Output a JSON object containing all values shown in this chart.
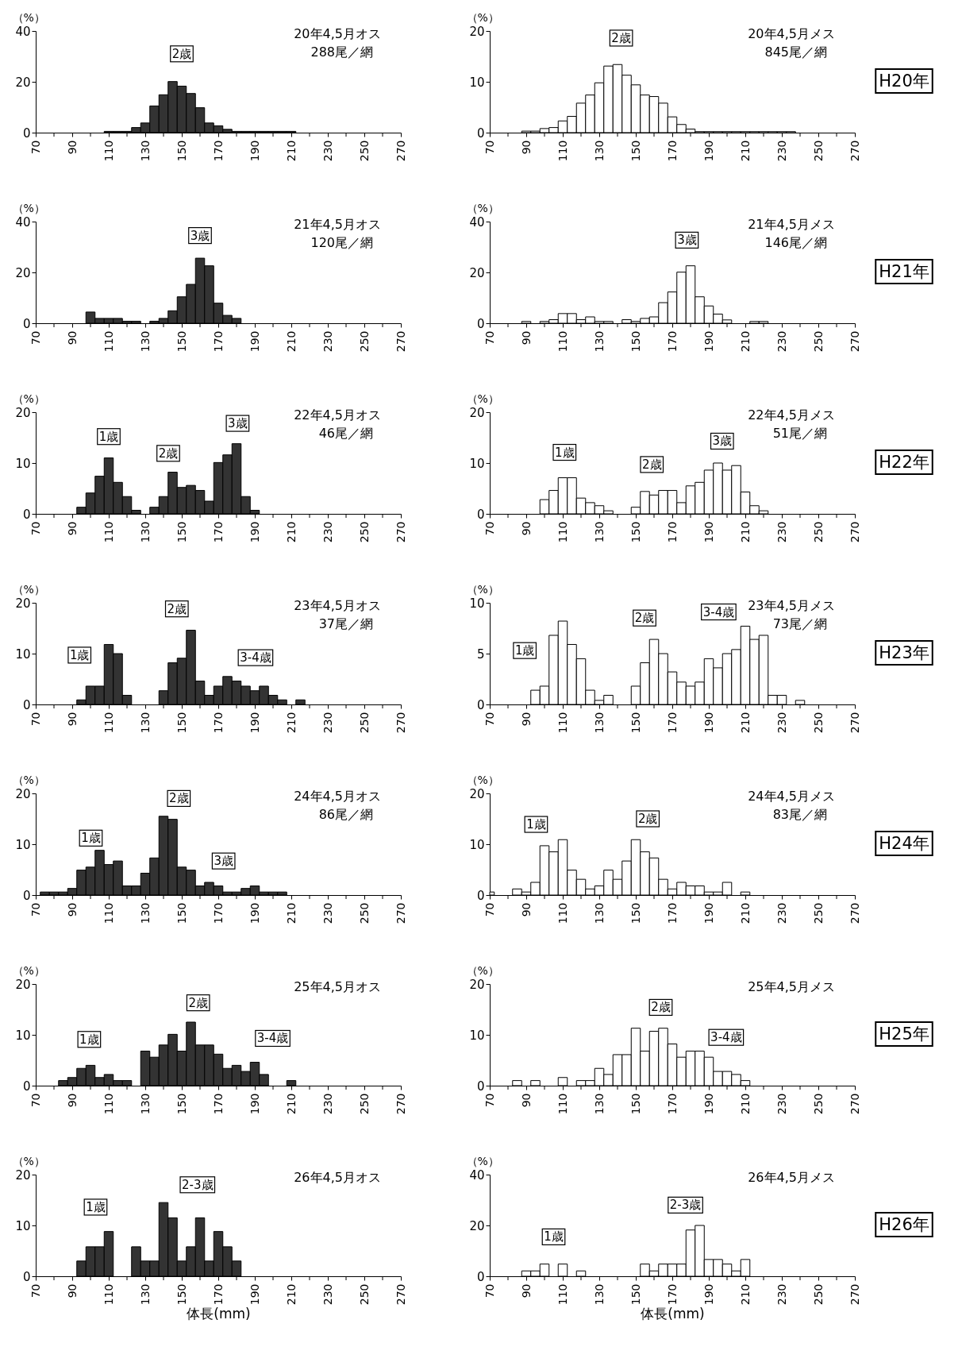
{
  "chart_data": [
    {
      "type": "histogram",
      "title": "20年4,5月オス",
      "subtitle": "288尾／網",
      "ylabel": "（%）",
      "color": "#333333",
      "xlim": [
        70,
        270
      ],
      "xticks": [
        70,
        {
          "value": 80,
          "label": null
        },
        90,
        {
          "value": 100,
          "label": null
        },
        110,
        {
          "value": 120,
          "label": null
        },
        130,
        {
          "value": 140,
          "label": null
        },
        150,
        {
          "value": 160,
          "label": null
        },
        170,
        {
          "value": 180,
          "label": null
        },
        190,
        {
          "value": 200,
          "label": null
        },
        210,
        {
          "value": 220,
          "label": null
        },
        230,
        {
          "value": 240,
          "label": null
        },
        250,
        {
          "value": 260,
          "label": null
        },
        270
      ],
      "ylim": [
        0,
        40
      ],
      "yticks": [
        0,
        20,
        40
      ],
      "bins": [
        107.5,
        112.5,
        117.5,
        122.5,
        127.5,
        132.5,
        137.5,
        142.5,
        147.5,
        152.5,
        157.5,
        162.5,
        167.5,
        172.5,
        177.5,
        182.5,
        187.5,
        192.5,
        197.5,
        202.5,
        207.5,
        212.5
      ],
      "values": [
        0.5,
        0.5,
        0.5,
        2,
        3.8,
        10.5,
        14.9,
        20.1,
        18.3,
        15.4,
        9.8,
        3.8,
        2.7,
        1.3,
        0.5,
        0.5,
        0.5,
        0.5,
        0.5,
        0.5,
        0.5
      ],
      "annotations": [
        {
          "text": "2歳",
          "x": 150,
          "y": 31
        }
      ]
    },
    {
      "type": "histogram",
      "title": "20年4,5月メス",
      "subtitle": "845尾／網",
      "ylabel": "（%）",
      "color": "#ffffff",
      "xlim": [
        70,
        270
      ],
      "xticks": [
        70,
        {
          "value": 80,
          "label": null
        },
        90,
        {
          "value": 100,
          "label": null
        },
        110,
        {
          "value": 120,
          "label": null
        },
        130,
        {
          "value": 140,
          "label": null
        },
        150,
        {
          "value": 160,
          "label": null
        },
        170,
        {
          "value": 180,
          "label": null
        },
        190,
        {
          "value": 200,
          "label": null
        },
        210,
        {
          "value": 220,
          "label": null
        },
        230,
        {
          "value": 240,
          "label": null
        },
        250,
        {
          "value": 260,
          "label": null
        },
        270
      ],
      "ylim": [
        0,
        20
      ],
      "yticks": [
        0,
        10,
        20
      ],
      "bins": [
        87.5,
        92.5,
        97.5,
        102.5,
        107.5,
        112.5,
        117.5,
        122.5,
        127.5,
        132.5,
        137.5,
        142.5,
        147.5,
        152.5,
        157.5,
        162.5,
        167.5,
        172.5,
        177.5,
        182.5,
        187.5,
        192.5,
        197.5,
        202.5,
        207.5,
        212.5,
        217.5,
        222.5,
        227.5,
        232.5,
        237.5
      ],
      "values": [
        0.3,
        0.3,
        0.8,
        1.0,
        2.3,
        3.2,
        5.8,
        7.4,
        9.8,
        13.1,
        13.4,
        11.3,
        9.4,
        7.4,
        7.1,
        5.8,
        3.1,
        1.6,
        0.7,
        0.2,
        0.2,
        0.2,
        0.2,
        0.2,
        0.2,
        0.2,
        0.2,
        0.2,
        0.2,
        0.2
      ],
      "annotations": [
        "H20年",
        {
          "text": "2歳",
          "x": 142,
          "y": 18.6
        }
      ]
    },
    {
      "type": "histogram",
      "title": "21年4,5月オス",
      "subtitle": "120尾／網",
      "ylabel": "（%）",
      "color": "#333333",
      "xlim": [
        70,
        270
      ],
      "xticks": [
        70,
        {
          "value": 80,
          "label": null
        },
        90,
        {
          "value": 100,
          "label": null
        },
        110,
        {
          "value": 120,
          "label": null
        },
        130,
        {
          "value": 140,
          "label": null
        },
        150,
        {
          "value": 160,
          "label": null
        },
        170,
        {
          "value": 180,
          "label": null
        },
        190,
        {
          "value": 200,
          "label": null
        },
        210,
        {
          "value": 220,
          "label": null
        },
        230,
        {
          "value": 240,
          "label": null
        },
        250,
        {
          "value": 260,
          "label": null
        },
        270
      ],
      "ylim": [
        0,
        40
      ],
      "yticks": [
        0,
        20,
        40
      ],
      "bins": [
        97.5,
        102.5,
        107.5,
        112.5,
        117.5,
        122.5,
        127.5,
        132.5,
        137.5,
        142.5,
        147.5,
        152.5,
        157.5,
        162.5,
        167.5,
        172.5,
        177.5,
        182.5
      ],
      "values": [
        4.4,
        1.9,
        1.9,
        1.9,
        0.8,
        0.8,
        0,
        0.8,
        1.9,
        4.9,
        10.4,
        15.3,
        25.6,
        22.6,
        7.9,
        3.1,
        1.9
      ],
      "annotations": [
        {
          "text": "3歳",
          "x": 160,
          "y": 34.5
        }
      ]
    },
    {
      "type": "histogram",
      "title": "21年4,5月メス",
      "subtitle": "146尾／網",
      "ylabel": "（%）",
      "color": "#ffffff",
      "xlim": [
        70,
        270
      ],
      "xticks": [
        70,
        {
          "value": 80,
          "label": null
        },
        90,
        {
          "value": 100,
          "label": null
        },
        110,
        {
          "value": 120,
          "label": null
        },
        130,
        {
          "value": 140,
          "label": null
        },
        150,
        {
          "value": 160,
          "label": null
        },
        170,
        {
          "value": 180,
          "label": null
        },
        190,
        {
          "value": 200,
          "label": null
        },
        210,
        {
          "value": 220,
          "label": null
        },
        230,
        {
          "value": 240,
          "label": null
        },
        250,
        {
          "value": 260,
          "label": null
        },
        270
      ],
      "ylim": [
        0,
        40
      ],
      "yticks": [
        0,
        20,
        40
      ],
      "bins": [
        87.5,
        92.5,
        97.5,
        102.5,
        107.5,
        112.5,
        117.5,
        122.5,
        127.5,
        132.5,
        137.5,
        142.5,
        147.5,
        152.5,
        157.5,
        162.5,
        167.5,
        172.5,
        177.5,
        182.5,
        187.5,
        192.5,
        197.5,
        202.5,
        207.5,
        212.5,
        217.5,
        222.5
      ],
      "values": [
        0.7,
        0,
        0.7,
        1.4,
        3.8,
        3.8,
        1.4,
        2.5,
        0.7,
        0.7,
        0,
        1.4,
        0.7,
        1.9,
        2.5,
        8.1,
        12.3,
        20.1,
        22.6,
        10.4,
        6.8,
        3.6,
        1.3,
        0,
        0,
        0.7,
        0.7
      ],
      "annotations": [
        "H21年",
        {
          "text": "3歳",
          "x": 178,
          "y": 32.7
        }
      ]
    },
    {
      "type": "histogram",
      "title": "22年4,5月オス",
      "subtitle": "46尾／網",
      "ylabel": "（%）",
      "color": "#333333",
      "xlim": [
        70,
        270
      ],
      "xticks": [
        70,
        {
          "value": 80,
          "label": null
        },
        90,
        {
          "value": 100,
          "label": null
        },
        110,
        {
          "value": 120,
          "label": null
        },
        130,
        {
          "value": 140,
          "label": null
        },
        150,
        {
          "value": 160,
          "label": null
        },
        170,
        {
          "value": 180,
          "label": null
        },
        190,
        {
          "value": 200,
          "label": null
        },
        210,
        {
          "value": 220,
          "label": null
        },
        230,
        {
          "value": 240,
          "label": null
        },
        250,
        {
          "value": 260,
          "label": null
        },
        270
      ],
      "ylim": [
        0,
        20
      ],
      "yticks": [
        0,
        10,
        20
      ],
      "bins": [
        92.5,
        97.5,
        102.5,
        107.5,
        112.5,
        117.5,
        122.5,
        127.5,
        132.5,
        137.5,
        142.5,
        147.5,
        152.5,
        157.5,
        162.5,
        167.5,
        172.5,
        177.5,
        182.5,
        187.5,
        192.5
      ],
      "values": [
        1.3,
        4.1,
        7.4,
        11.0,
        6.2,
        3.4,
        0.7,
        0,
        1.3,
        3.4,
        8.2,
        5.2,
        5.6,
        4.6,
        2.5,
        10.1,
        11.6,
        13.8,
        3.4,
        0.7
      ],
      "annotations": [
        {
          "text": "1歳",
          "x": 110,
          "y": 15.2
        },
        {
          "text": "2歳",
          "x": 142.6,
          "y": 11.9
        },
        {
          "text": "3歳",
          "x": 180.6,
          "y": 17.8
        }
      ]
    },
    {
      "type": "histogram",
      "title": "22年4,5月メス",
      "subtitle": "51尾／網",
      "ylabel": "（%）",
      "color": "#ffffff",
      "xlim": [
        70,
        270
      ],
      "xticks": [
        70,
        {
          "value": 80,
          "label": null
        },
        90,
        {
          "value": 100,
          "label": null
        },
        110,
        {
          "value": 120,
          "label": null
        },
        130,
        {
          "value": 140,
          "label": null
        },
        150,
        {
          "value": 160,
          "label": null
        },
        170,
        {
          "value": 180,
          "label": null
        },
        190,
        {
          "value": 200,
          "label": null
        },
        210,
        {
          "value": 220,
          "label": null
        },
        230,
        {
          "value": 240,
          "label": null
        },
        250,
        {
          "value": 260,
          "label": null
        },
        270
      ],
      "ylim": [
        0,
        20
      ],
      "yticks": [
        0,
        10,
        20
      ],
      "bins": [
        97.5,
        102.5,
        107.5,
        112.5,
        117.5,
        122.5,
        127.5,
        132.5,
        137.5,
        142.5,
        147.5,
        152.5,
        157.5,
        162.5,
        167.5,
        172.5,
        177.5,
        182.5,
        187.5,
        192.5,
        197.5,
        202.5,
        207.5,
        212.5,
        217.5,
        222.5
      ],
      "values": [
        2.8,
        4.6,
        7.1,
        7.1,
        3.1,
        2.2,
        1.6,
        0.6,
        0,
        0,
        1.3,
        4.4,
        3.7,
        4.6,
        4.6,
        2.2,
        5.5,
        6.2,
        8.6,
        10.0,
        8.6,
        9.5,
        4.3,
        1.6,
        0.6
      ],
      "annotations": [
        "H22年",
        {
          "text": "1歳",
          "x": 111,
          "y": 12.1
        },
        {
          "text": "2歳",
          "x": 158.8,
          "y": 9.7
        },
        {
          "text": "3歳",
          "x": 197.3,
          "y": 14.3
        }
      ]
    },
    {
      "type": "histogram",
      "title": "23年4,5月オス",
      "subtitle": "37尾／網",
      "ylabel": "（%）",
      "color": "#333333",
      "xlim": [
        70,
        270
      ],
      "xticks": [
        70,
        {
          "value": 80,
          "label": null
        },
        90,
        {
          "value": 100,
          "label": null
        },
        110,
        {
          "value": 120,
          "label": null
        },
        130,
        {
          "value": 140,
          "label": null
        },
        150,
        {
          "value": 160,
          "label": null
        },
        170,
        {
          "value": 180,
          "label": null
        },
        190,
        {
          "value": 200,
          "label": null
        },
        210,
        {
          "value": 220,
          "label": null
        },
        230,
        {
          "value": 240,
          "label": null
        },
        250,
        {
          "value": 260,
          "label": null
        },
        270
      ],
      "ylim": [
        0,
        20
      ],
      "yticks": [
        0,
        10,
        20
      ],
      "bins": [
        92.5,
        97.5,
        102.5,
        107.5,
        112.5,
        117.5,
        122.5,
        127.5,
        132.5,
        137.5,
        142.5,
        147.5,
        152.5,
        157.5,
        162.5,
        167.5,
        172.5,
        177.5,
        182.5,
        187.5,
        192.5,
        197.5,
        202.5,
        207.5,
        212.5,
        217.5
      ],
      "values": [
        0.9,
        3.6,
        3.6,
        11.8,
        10.0,
        1.8,
        0,
        0,
        0,
        2.7,
        8.2,
        9.1,
        14.6,
        4.6,
        1.8,
        3.6,
        5.5,
        4.6,
        3.6,
        2.7,
        3.6,
        1.8,
        0.9,
        0,
        0.9
      ],
      "annotations": [
        {
          "text": "1歳",
          "x": 94,
          "y": 9.7
        },
        {
          "text": "2歳",
          "x": 147.3,
          "y": 18.8
        },
        {
          "text": "3-4歳",
          "x": 190.4,
          "y": 9.2
        }
      ]
    },
    {
      "type": "histogram",
      "title": "23年4,5月メス",
      "subtitle": "73尾／網",
      "ylabel": "（%）",
      "color": "#ffffff",
      "xlim": [
        70,
        270
      ],
      "xticks": [
        70,
        {
          "value": 80,
          "label": null
        },
        90,
        {
          "value": 100,
          "label": null
        },
        110,
        {
          "value": 120,
          "label": null
        },
        130,
        {
          "value": 140,
          "label": null
        },
        150,
        {
          "value": 160,
          "label": null
        },
        170,
        {
          "value": 180,
          "label": null
        },
        190,
        {
          "value": 200,
          "label": null
        },
        210,
        {
          "value": 220,
          "label": null
        },
        230,
        {
          "value": 240,
          "label": null
        },
        250,
        {
          "value": 260,
          "label": null
        },
        270
      ],
      "ylim": [
        0,
        10
      ],
      "yticks": [
        0,
        5,
        10
      ],
      "bins": [
        92.5,
        97.5,
        102.5,
        107.5,
        112.5,
        117.5,
        122.5,
        127.5,
        132.5,
        137.5,
        142.5,
        147.5,
        152.5,
        157.5,
        162.5,
        167.5,
        172.5,
        177.5,
        182.5,
        187.5,
        192.5,
        197.5,
        202.5,
        207.5,
        212.5,
        217.5,
        222.5,
        227.5,
        232.5,
        237.5,
        242.5
      ],
      "values": [
        1.4,
        1.8,
        6.8,
        8.2,
        5.9,
        4.5,
        1.4,
        0.4,
        0.9,
        0,
        0,
        1.8,
        4.1,
        6.4,
        5.0,
        3.2,
        2.2,
        1.8,
        2.2,
        4.5,
        3.6,
        5.0,
        5.4,
        7.7,
        6.4,
        6.8,
        0.9,
        0.9,
        0,
        0.4
      ],
      "annotations": [
        "H23年",
        {
          "text": "1歳",
          "x": 89.2,
          "y": 5.3
        },
        {
          "text": "2歳",
          "x": 154.8,
          "y": 8.5
        },
        {
          "text": "3-4歳",
          "x": 195.4,
          "y": 9.1
        }
      ]
    },
    {
      "type": "histogram",
      "title": "24年4,5月オス",
      "subtitle": "86尾／網",
      "ylabel": "（%）",
      "color": "#333333",
      "xlim": [
        70,
        270
      ],
      "xticks": [
        70,
        {
          "value": 80,
          "label": null
        },
        90,
        {
          "value": 100,
          "label": null
        },
        110,
        {
          "value": 120,
          "label": null
        },
        130,
        {
          "value": 140,
          "label": null
        },
        150,
        {
          "value": 160,
          "label": null
        },
        170,
        {
          "value": 180,
          "label": null
        },
        190,
        {
          "value": 200,
          "label": null
        },
        210,
        {
          "value": 220,
          "label": null
        },
        230,
        {
          "value": 240,
          "label": null
        },
        250,
        {
          "value": 260,
          "label": null
        },
        270
      ],
      "ylim": [
        0,
        20
      ],
      "yticks": [
        0,
        10,
        20
      ],
      "bins": [
        72.5,
        77.5,
        82.5,
        87.5,
        92.5,
        97.5,
        102.5,
        107.5,
        112.5,
        117.5,
        122.5,
        127.5,
        132.5,
        137.5,
        142.5,
        147.5,
        152.5,
        157.5,
        162.5,
        167.5,
        172.5,
        177.5,
        182.5,
        187.5,
        192.5,
        197.5,
        202.5,
        207.5
      ],
      "values": [
        0.6,
        0.6,
        0.6,
        1.3,
        4.9,
        5.5,
        8.8,
        6.0,
        6.7,
        1.8,
        1.8,
        4.3,
        7.3,
        15.5,
        14.9,
        5.5,
        4.9,
        1.8,
        2.5,
        1.8,
        0.6,
        0.6,
        1.3,
        1.8,
        0.6,
        0.6,
        0.6
      ],
      "annotations": [
        {
          "text": "1歳",
          "x": 100.2,
          "y": 11.2
        },
        {
          "text": "2歳",
          "x": 148.4,
          "y": 19
        },
        {
          "text": "3歳",
          "x": 172.9,
          "y": 6.7
        }
      ]
    },
    {
      "type": "histogram",
      "title": "24年4,5月メス",
      "subtitle": "83尾／網",
      "ylabel": "（%）",
      "color": "#ffffff",
      "xlim": [
        70,
        270
      ],
      "xticks": [
        70,
        {
          "value": 80,
          "label": null
        },
        90,
        {
          "value": 100,
          "label": null
        },
        110,
        {
          "value": 120,
          "label": null
        },
        130,
        {
          "value": 140,
          "label": null
        },
        150,
        {
          "value": 160,
          "label": null
        },
        170,
        {
          "value": 180,
          "label": null
        },
        190,
        {
          "value": 200,
          "label": null
        },
        210,
        {
          "value": 220,
          "label": null
        },
        230,
        {
          "value": 240,
          "label": null
        },
        250,
        {
          "value": 260,
          "label": null
        },
        270
      ],
      "ylim": [
        0,
        20
      ],
      "yticks": [
        0,
        10,
        20
      ],
      "bins": [
        70,
        72.5,
        82.5,
        87.5,
        92.5,
        97.5,
        102.5,
        107.5,
        112.5,
        117.5,
        122.5,
        127.5,
        132.5,
        137.5,
        142.5,
        147.5,
        152.5,
        157.5,
        162.5,
        167.5,
        172.5,
        177.5,
        182.5,
        187.5,
        192.5,
        197.5,
        202.5,
        207.5,
        212.5
      ],
      "values": [
        0.6,
        0,
        1.2,
        0.6,
        2.5,
        9.7,
        8.5,
        10.9,
        4.9,
        3.1,
        1.2,
        1.8,
        4.9,
        3.1,
        6.7,
        10.9,
        8.5,
        7.3,
        3.1,
        1.2,
        2.5,
        1.8,
        1.8,
        0.6,
        0.6,
        2.5,
        0,
        0.6
      ],
      "annotations": [
        "H24年",
        {
          "text": "1歳",
          "x": 95.4,
          "y": 13.9
        },
        {
          "text": "2歳",
          "x": 156.6,
          "y": 15
        }
      ]
    },
    {
      "type": "histogram",
      "title": "25年4,5月オス",
      "ylabel": "（%）",
      "color": "#333333",
      "xlim": [
        70,
        270
      ],
      "xticks": [
        70,
        {
          "value": 80,
          "label": null
        },
        90,
        {
          "value": 100,
          "label": null
        },
        110,
        {
          "value": 120,
          "label": null
        },
        130,
        {
          "value": 140,
          "label": null
        },
        150,
        {
          "value": 160,
          "label": null
        },
        170,
        {
          "value": 180,
          "label": null
        },
        190,
        {
          "value": 200,
          "label": null
        },
        210,
        {
          "value": 220,
          "label": null
        },
        230,
        {
          "value": 240,
          "label": null
        },
        250,
        {
          "value": 260,
          "label": null
        },
        270
      ],
      "ylim": [
        0,
        20
      ],
      "yticks": [
        0,
        10,
        20
      ],
      "bins": [
        82.5,
        87.5,
        92.5,
        97.5,
        102.5,
        107.5,
        112.5,
        117.5,
        122.5,
        127.5,
        132.5,
        137.5,
        142.5,
        147.5,
        152.5,
        157.5,
        162.5,
        167.5,
        172.5,
        177.5,
        182.5,
        187.5,
        192.5,
        197.5,
        202.5,
        207.5,
        212.5
      ],
      "values": [
        1.0,
        1.6,
        3.4,
        4.0,
        1.6,
        2.2,
        1.0,
        1.0,
        0,
        6.8,
        5.6,
        8.0,
        10.1,
        6.8,
        12.5,
        8.0,
        8.0,
        6.2,
        3.4,
        4.0,
        2.8,
        4.6,
        2.2,
        0,
        0,
        1.0
      ],
      "annotations": [
        {
          "text": "1歳",
          "x": 99.3,
          "y": 9.1
        },
        {
          "text": "2歳",
          "x": 159,
          "y": 16.3
        },
        {
          "text": "3-4歳",
          "x": 199.8,
          "y": 9.3
        }
      ]
    },
    {
      "type": "histogram",
      "title": "25年4,5月メス",
      "ylabel": "（%）",
      "color": "#ffffff",
      "xlim": [
        70,
        270
      ],
      "xticks": [
        70,
        {
          "value": 80,
          "label": null
        },
        90,
        {
          "value": 100,
          "label": null
        },
        110,
        {
          "value": 120,
          "label": null
        },
        130,
        {
          "value": 140,
          "label": null
        },
        150,
        {
          "value": 160,
          "label": null
        },
        170,
        {
          "value": 180,
          "label": null
        },
        190,
        {
          "value": 200,
          "label": null
        },
        210,
        {
          "value": 220,
          "label": null
        },
        230,
        {
          "value": 240,
          "label": null
        },
        250,
        {
          "value": 260,
          "label": null
        },
        270
      ],
      "ylim": [
        0,
        20
      ],
      "yticks": [
        0,
        10,
        20
      ],
      "bins": [
        82.5,
        87.5,
        92.5,
        97.5,
        102.5,
        107.5,
        112.5,
        117.5,
        122.5,
        127.5,
        132.5,
        137.5,
        142.5,
        147.5,
        152.5,
        157.5,
        162.5,
        167.5,
        172.5,
        177.5,
        182.5,
        187.5,
        192.5,
        197.5,
        202.5,
        207.5,
        212.5
      ],
      "values": [
        1.0,
        0,
        1.0,
        0,
        0,
        1.6,
        0,
        1.0,
        1.0,
        3.4,
        2.2,
        6.1,
        6.1,
        11.3,
        6.8,
        10.7,
        11.3,
        8.2,
        5.6,
        6.8,
        6.8,
        5.6,
        2.8,
        2.8,
        2.2,
        1.0
      ],
      "annotations": [
        "H25年",
        {
          "text": "2歳",
          "x": 163.7,
          "y": 15.4
        },
        {
          "text": "3-4歳",
          "x": 199.5,
          "y": 9.5
        }
      ]
    },
    {
      "type": "histogram",
      "title": "26年4,5月オス",
      "ylabel": "（%）",
      "xlabel": "体長(mm)",
      "color": "#333333",
      "xlim": [
        70,
        270
      ],
      "xticks": [
        70,
        {
          "value": 80,
          "label": null
        },
        90,
        {
          "value": 100,
          "label": null
        },
        110,
        {
          "value": 120,
          "label": null
        },
        130,
        {
          "value": 140,
          "label": null
        },
        150,
        {
          "value": 160,
          "label": null
        },
        170,
        {
          "value": 180,
          "label": null
        },
        190,
        {
          "value": 200,
          "label": null
        },
        210,
        {
          "value": 220,
          "label": null
        },
        230,
        {
          "value": 240,
          "label": null
        },
        250,
        {
          "value": 260,
          "label": null
        },
        270
      ],
      "ylim": [
        0,
        20
      ],
      "yticks": [
        0,
        10,
        20
      ],
      "bins": [
        92.5,
        97.5,
        102.5,
        107.5,
        112.5,
        117.5,
        122.5,
        127.5,
        132.5,
        137.5,
        142.5,
        147.5,
        152.5,
        157.5,
        162.5,
        167.5,
        172.5,
        177.5,
        182.5
      ],
      "values": [
        3.0,
        5.8,
        5.8,
        8.8,
        0,
        0,
        5.8,
        3.0,
        3.0,
        14.5,
        11.5,
        3.0,
        5.8,
        11.5,
        3.0,
        8.8,
        5.8,
        3.0
      ],
      "annotations": [
        {
          "text": "1歳",
          "x": 102.8,
          "y": 13.6
        },
        {
          "text": "2-3歳",
          "x": 158.6,
          "y": 18
        }
      ]
    },
    {
      "type": "histogram",
      "title": "26年4,5月メス",
      "ylabel": "（%）",
      "xlabel": "体長(mm)",
      "color": "#ffffff",
      "xlim": [
        70,
        270
      ],
      "xticks": [
        70,
        {
          "value": 80,
          "label": null
        },
        90,
        {
          "value": 100,
          "label": null
        },
        110,
        {
          "value": 120,
          "label": null
        },
        130,
        {
          "value": 140,
          "label": null
        },
        150,
        {
          "value": 160,
          "label": null
        },
        170,
        {
          "value": 180,
          "label": null
        },
        190,
        {
          "value": 200,
          "label": null
        },
        210,
        {
          "value": 220,
          "label": null
        },
        230,
        {
          "value": 240,
          "label": null
        },
        250,
        {
          "value": 260,
          "label": null
        },
        270
      ],
      "ylim": [
        0,
        40
      ],
      "yticks": [
        0,
        20,
        40
      ],
      "bins": [
        87.5,
        92.5,
        97.5,
        102.5,
        107.5,
        112.5,
        117.5,
        122.5,
        127.5,
        132.5,
        137.5,
        142.5,
        147.5,
        152.5,
        157.5,
        162.5,
        167.5,
        172.5,
        177.5,
        182.5,
        187.5,
        192.5,
        197.5,
        202.5,
        207.5,
        212.5
      ],
      "values": [
        2.1,
        2.1,
        4.8,
        0,
        4.8,
        0,
        2.1,
        0,
        0,
        0,
        0,
        0,
        0,
        4.8,
        2.1,
        4.8,
        4.8,
        4.8,
        18.2,
        20.0,
        6.6,
        6.6,
        4.8,
        2.1,
        6.6
      ],
      "annotations": [
        "H26年",
        {
          "text": "1歳",
          "x": 105,
          "y": 15.5
        },
        {
          "text": "2-3歳",
          "x": 177.2,
          "y": 28
        }
      ]
    }
  ]
}
